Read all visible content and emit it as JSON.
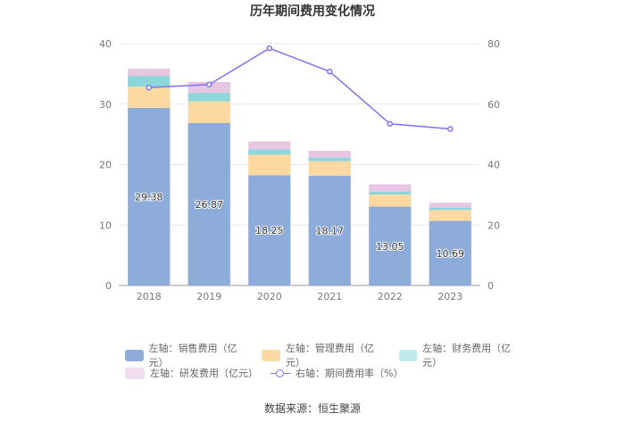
{
  "chart_data": {
    "type": "bar",
    "title": "历年期间费用变化情况",
    "categories": [
      "2018",
      "2019",
      "2020",
      "2021",
      "2022",
      "2023"
    ],
    "stacked": true,
    "series": [
      {
        "name": "左轴：销售费用（亿元）",
        "axis": "left",
        "color": "#8eacda",
        "values": [
          29.38,
          26.87,
          18.25,
          18.17,
          13.05,
          10.69
        ],
        "labels": true
      },
      {
        "name": "左轴：管理费用（亿元）",
        "axis": "left",
        "color": "#fcd9a0",
        "values": [
          3.5,
          3.6,
          3.4,
          2.4,
          2.0,
          1.8
        ]
      },
      {
        "name": "左轴：财务费用（亿元）",
        "axis": "left",
        "color": "#8dd6d9",
        "values": [
          1.8,
          1.4,
          0.9,
          0.6,
          0.5,
          0.4
        ]
      },
      {
        "name": "左轴：研发费用（亿元）",
        "axis": "left",
        "color": "#e8c6e3",
        "values": [
          1.2,
          1.8,
          1.3,
          1.1,
          1.2,
          0.8
        ]
      }
    ],
    "line_series": {
      "name": "右轴：期间费用率（%）",
      "axis": "right",
      "color": "#7b76f0",
      "values": [
        65.5,
        66.5,
        78.5,
        70.8,
        53.5,
        51.8
      ]
    },
    "y_left": {
      "min": 0,
      "max": 40,
      "ticks": [
        0,
        10,
        20,
        30,
        40
      ]
    },
    "y_right": {
      "min": 0,
      "max": 80,
      "ticks": [
        0,
        20,
        40,
        60,
        80
      ]
    },
    "grid": true,
    "legend_position": "bottom"
  },
  "legend": {
    "sales": "左轴：销售费用（亿元）",
    "admin": "左轴：管理费用（亿元）",
    "finance": "左轴：财务费用（亿元）",
    "rnd": "左轴：研发费用（亿元）",
    "ratio": "右轴：期间费用率（%）"
  },
  "source": "数据来源：恒生聚源"
}
